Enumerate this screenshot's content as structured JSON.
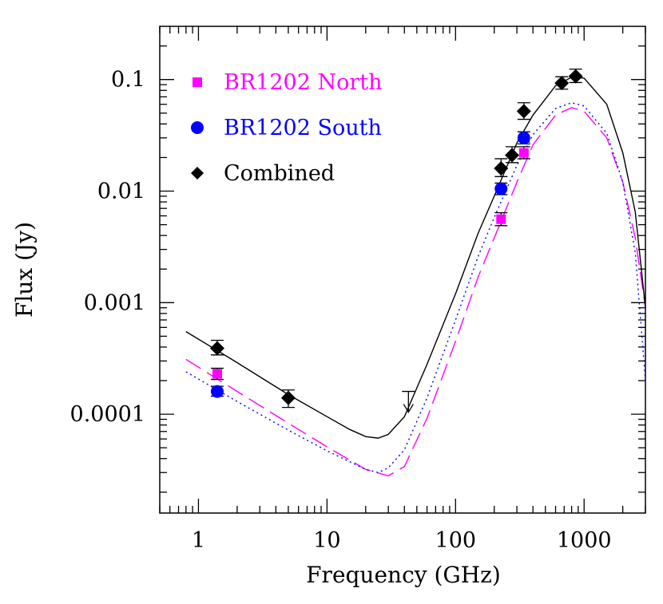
{
  "chart_data": {
    "type": "scatter",
    "xlabel": "Frequency (GHz)",
    "ylabel": "Flux (Jy)",
    "xscale": "log",
    "yscale": "log",
    "xlim": [
      0.5,
      3000
    ],
    "ylim": [
      1.3e-05,
      0.3
    ],
    "grid": false,
    "legend_placement": "top-left",
    "x_ticks": [
      {
        "value": 1,
        "label": "1"
      },
      {
        "value": 10,
        "label": "10"
      },
      {
        "value": 100,
        "label": "100"
      },
      {
        "value": 1000,
        "label": "1000"
      }
    ],
    "y_ticks": [
      {
        "value": 0.0001,
        "label": "0.0001"
      },
      {
        "value": 0.001,
        "label": "0.001"
      },
      {
        "value": 0.01,
        "label": "0.01"
      },
      {
        "value": 0.1,
        "label": "0.1"
      }
    ],
    "series": [
      {
        "name": "BR1202 North",
        "color": "#ff00ff",
        "marker": "square",
        "points": [
          {
            "x": 1.4,
            "y": 0.00023,
            "lo": 0.000205,
            "hi": 0.000258
          },
          {
            "x": 226,
            "y": 0.0056,
            "lo": 0.0049,
            "hi": 0.0064
          },
          {
            "x": 340,
            "y": 0.022,
            "lo": 0.0195,
            "hi": 0.025
          }
        ],
        "model": [
          [
            0.8,
            0.00031
          ],
          [
            2,
            0.00016
          ],
          [
            5,
            8.3e-05
          ],
          [
            10,
            5.1e-05
          ],
          [
            20,
            3.2e-05
          ],
          [
            30,
            2.8e-05
          ],
          [
            40,
            3.4e-05
          ],
          [
            60,
            9.2e-05
          ],
          [
            100,
            0.00045
          ],
          [
            150,
            0.0017
          ],
          [
            200,
            0.0038
          ],
          [
            300,
            0.012
          ],
          [
            400,
            0.026
          ],
          [
            600,
            0.048
          ],
          [
            800,
            0.056
          ],
          [
            1000,
            0.052
          ],
          [
            1500,
            0.03
          ],
          [
            2000,
            0.012
          ],
          [
            2500,
            0.0038
          ],
          [
            3000,
            0.0009
          ]
        ]
      },
      {
        "name": "BR1202 South",
        "color": "#0000ff",
        "marker": "circle",
        "points": [
          {
            "x": 1.4,
            "y": 0.00016,
            "lo": 0.000145,
            "hi": 0.000178
          },
          {
            "x": 226,
            "y": 0.0105,
            "lo": 0.0093,
            "hi": 0.0118
          },
          {
            "x": 340,
            "y": 0.03,
            "lo": 0.0265,
            "hi": 0.034
          }
        ],
        "model": [
          [
            0.8,
            0.00024
          ],
          [
            2,
            0.00013
          ],
          [
            5,
            7.2e-05
          ],
          [
            10,
            4.7e-05
          ],
          [
            20,
            3.2e-05
          ],
          [
            25,
            3e-05
          ],
          [
            30,
            3.3e-05
          ],
          [
            40,
            4.8e-05
          ],
          [
            60,
            0.00014
          ],
          [
            100,
            0.0007
          ],
          [
            150,
            0.0026
          ],
          [
            200,
            0.0058
          ],
          [
            300,
            0.017
          ],
          [
            400,
            0.032
          ],
          [
            600,
            0.055
          ],
          [
            800,
            0.062
          ],
          [
            1000,
            0.058
          ],
          [
            1500,
            0.033
          ],
          [
            2000,
            0.012
          ],
          [
            2500,
            0.0028
          ],
          [
            3000,
            0.0002
          ]
        ]
      },
      {
        "name": "Combined",
        "color": "#000000",
        "marker": "diamond",
        "points": [
          {
            "x": 1.4,
            "y": 0.00039,
            "lo": 0.00034,
            "hi": 0.00046
          },
          {
            "x": 5,
            "y": 0.00014,
            "lo": 0.000115,
            "hi": 0.000165
          },
          {
            "x": 226,
            "y": 0.016,
            "lo": 0.0135,
            "hi": 0.0195
          },
          {
            "x": 275,
            "y": 0.021,
            "lo": 0.018,
            "hi": 0.025
          },
          {
            "x": 340,
            "y": 0.052,
            "lo": 0.044,
            "hi": 0.062
          },
          {
            "x": 670,
            "y": 0.093,
            "lo": 0.082,
            "hi": 0.106
          },
          {
            "x": 860,
            "y": 0.107,
            "lo": 0.094,
            "hi": 0.124
          }
        ],
        "upper_limits": [
          {
            "x": 43,
            "y": 0.00016
          }
        ],
        "model": [
          [
            0.8,
            0.00055
          ],
          [
            2,
            0.00029
          ],
          [
            5,
            0.00015
          ],
          [
            10,
            9.5e-05
          ],
          [
            15,
            7.3e-05
          ],
          [
            20,
            6.3e-05
          ],
          [
            25,
            6.1e-05
          ],
          [
            30,
            6.6e-05
          ],
          [
            40,
            9.5e-05
          ],
          [
            60,
            0.00028
          ],
          [
            100,
            0.0012
          ],
          [
            150,
            0.0042
          ],
          [
            200,
            0.009
          ],
          [
            300,
            0.027
          ],
          [
            400,
            0.048
          ],
          [
            600,
            0.088
          ],
          [
            800,
            0.105
          ],
          [
            1000,
            0.103
          ],
          [
            1500,
            0.06
          ],
          [
            2000,
            0.022
          ],
          [
            2500,
            0.0065
          ],
          [
            3000,
            0.0009
          ]
        ]
      }
    ]
  }
}
